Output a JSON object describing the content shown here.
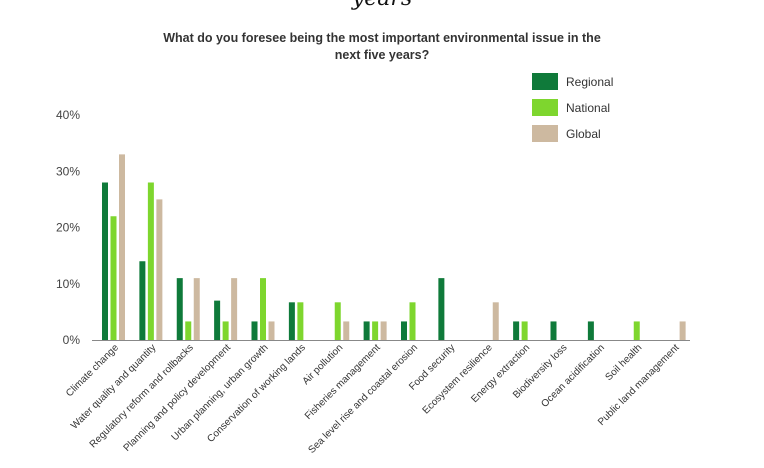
{
  "fragment": "years",
  "colors": {
    "Regional": "#0f7a3a",
    "National": "#7ed62e",
    "Global": "#cdb9a0",
    "axis": "#888888"
  },
  "chart_data": {
    "type": "bar",
    "title": "What do you foresee being the most important environmental issue in the next five years?",
    "title_lines": [
      "What do you foresee being the most important environmental issue in the",
      "next five years?"
    ],
    "xlabel": "",
    "ylabel": "",
    "ylim": [
      0,
      40
    ],
    "yticks": [
      0,
      10,
      20,
      30,
      40
    ],
    "ytick_labels": [
      "0%",
      "10%",
      "20%",
      "30%",
      "40%"
    ],
    "grid": false,
    "legend": "top-right",
    "categories": [
      "Climate change",
      "Water quality and quantity",
      "Regulatory reform and rollbacks",
      "Planning and policy development",
      "Urban planning, urban growth",
      "Conservation of working lands",
      "Air pollution",
      "Fisheries management",
      "Sea level rise and coastal erosion",
      "Food security",
      "Ecosystem resilience",
      "Energy extraction",
      "Biodiversity loss",
      "Ocean acidification",
      "Soil health",
      "Public land management"
    ],
    "series": [
      {
        "name": "Regional",
        "values": [
          28,
          14,
          11,
          7,
          3.3,
          6.7,
          0,
          3.3,
          3.3,
          11,
          0,
          3.3,
          3.3,
          3.3,
          0,
          0
        ]
      },
      {
        "name": "National",
        "values": [
          22,
          28,
          3.3,
          3.3,
          11,
          6.7,
          6.7,
          3.3,
          6.7,
          0,
          0,
          3.3,
          0,
          0,
          3.3,
          0
        ]
      },
      {
        "name": "Global",
        "values": [
          33,
          25,
          11,
          11,
          3.3,
          0,
          3.3,
          3.3,
          0,
          0,
          6.7,
          0,
          0,
          0,
          0,
          3.3
        ]
      }
    ]
  }
}
